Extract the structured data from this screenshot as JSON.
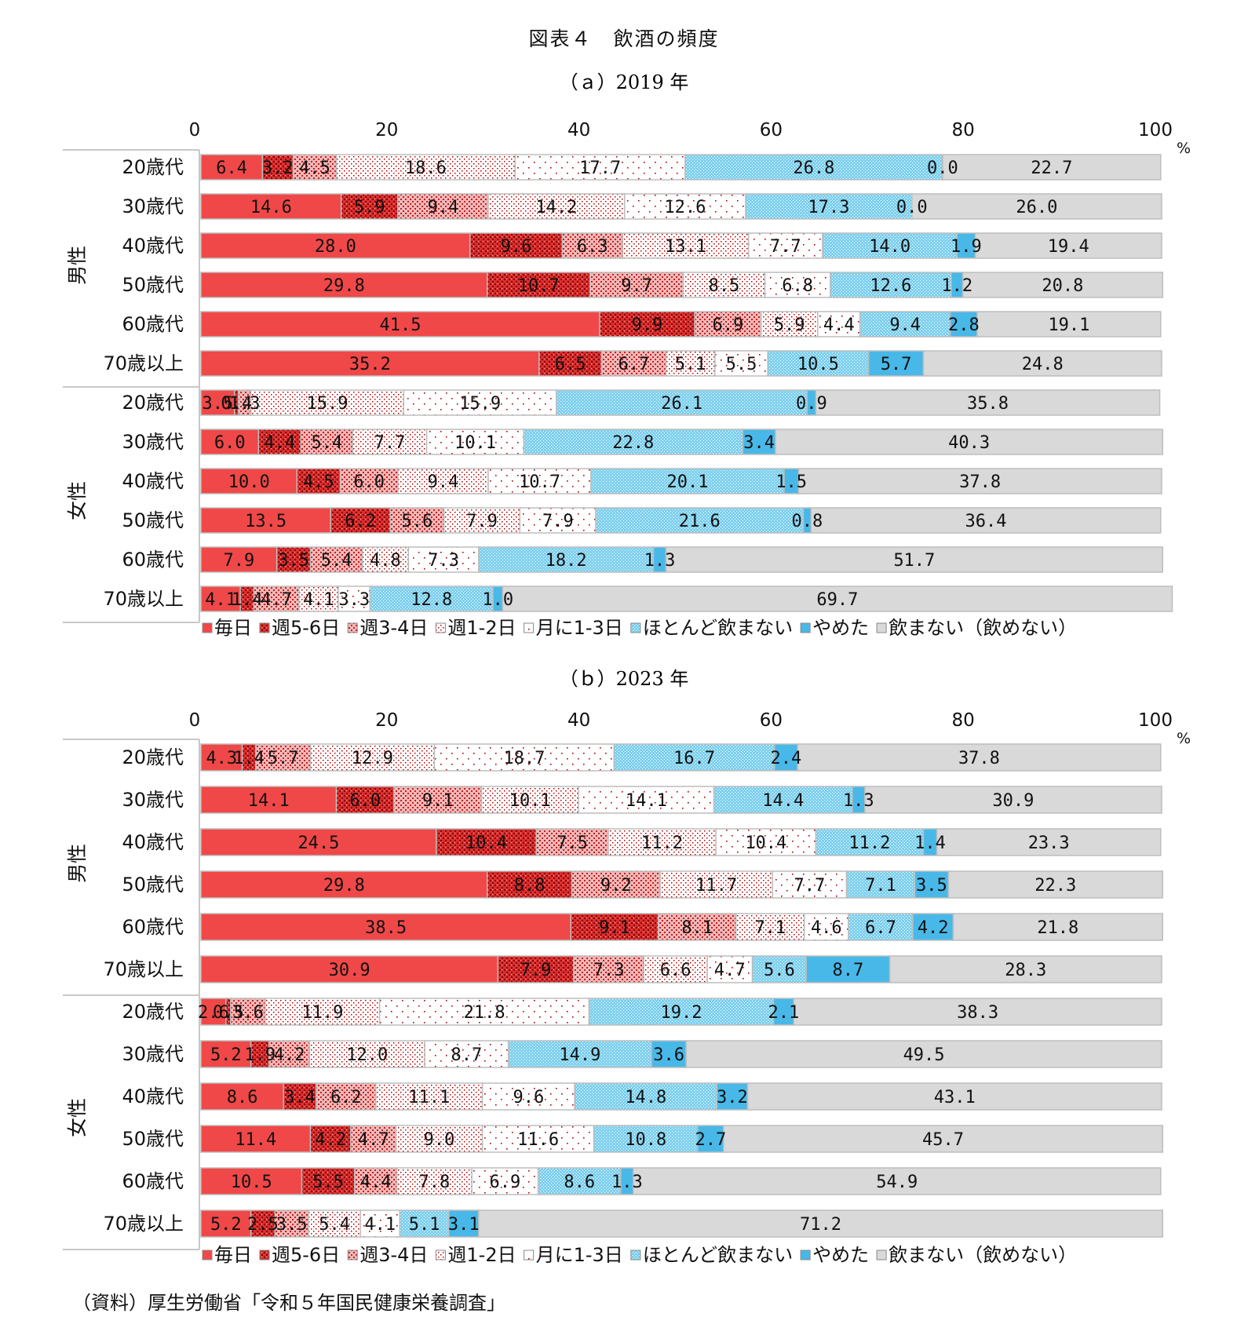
{
  "title": "図表４　飲酒の頻度",
  "source": "（資料）厚生労働省「令和５年国民健康栄養調査」",
  "legend": [
    {
      "name": "毎日",
      "color": "#f04848",
      "pattern": "solid"
    },
    {
      "name": "週5-6日",
      "color": "#e03c3c",
      "pattern": "dense-red"
    },
    {
      "name": "週3-4日",
      "color": "#e87070",
      "pattern": "medium-red"
    },
    {
      "name": "週1-2日",
      "color": "#f4a8a8",
      "pattern": "light-red"
    },
    {
      "name": "月に1-3日",
      "color": "#f8d0d0",
      "pattern": "sparse-red"
    },
    {
      "name": "ほとんど飲まない",
      "color": "#7ed0ee",
      "pattern": "dotted-blue"
    },
    {
      "name": "やめた",
      "color": "#48b8e8",
      "pattern": "solid"
    },
    {
      "name": "飲まない（飲めない）",
      "color": "#d9d9d9",
      "pattern": "solid"
    }
  ],
  "axis": {
    "ticks": [
      "0",
      "20",
      "40",
      "60",
      "80",
      "100"
    ],
    "unit": "%"
  },
  "groups": [
    {
      "name": "男性",
      "rows": [
        "20歳代",
        "30歳代",
        "40歳代",
        "50歳代",
        "60歳代",
        "70歳以上"
      ]
    },
    {
      "name": "女性",
      "rows": [
        "20歳代",
        "30歳代",
        "40歳代",
        "50歳代",
        "60歳代",
        "70歳以上"
      ]
    }
  ],
  "chart_data": [
    {
      "type": "bar",
      "orientation": "horizontal-stacked",
      "title": "（ａ）2019 年",
      "xlim": [
        0,
        100
      ],
      "categories": [
        "男性 20歳代",
        "男性 30歳代",
        "男性 40歳代",
        "男性 50歳代",
        "男性 60歳代",
        "男性 70歳以上",
        "女性 20歳代",
        "女性 30歳代",
        "女性 40歳代",
        "女性 50歳代",
        "女性 60歳代",
        "女性 70歳以上"
      ],
      "series": [
        {
          "name": "毎日",
          "values": [
            "6.4",
            "14.6",
            "28.0",
            "29.8",
            "41.5",
            "35.2",
            "3.5",
            "6.0",
            "10.0",
            "13.5",
            "7.9",
            "4.1"
          ]
        },
        {
          "name": "週5-6日",
          "values": [
            "3.2",
            "5.9",
            "9.6",
            "10.7",
            "9.9",
            "6.5",
            "0.4",
            "4.4",
            "4.5",
            "6.2",
            "3.5",
            "1.4"
          ]
        },
        {
          "name": "週3-4日",
          "values": [
            "4.5",
            "9.4",
            "6.3",
            "9.7",
            "6.9",
            "6.7",
            "1.3",
            "5.4",
            "6.0",
            "5.6",
            "5.4",
            "4.7"
          ]
        },
        {
          "name": "週1-2日",
          "values": [
            "18.6",
            "14.2",
            "13.1",
            "8.5",
            "5.9",
            "5.1",
            "15.9",
            "7.7",
            "9.4",
            "7.9",
            "4.8",
            "4.1"
          ]
        },
        {
          "name": "月に1-3日",
          "values": [
            "17.7",
            "12.6",
            "7.7",
            "6.8",
            "4.4",
            "5.5",
            "15.9",
            "10.1",
            "10.7",
            "7.9",
            "7.3",
            "3.3"
          ]
        },
        {
          "name": "ほとんど飲まない",
          "values": [
            "26.8",
            "17.3",
            "14.0",
            "12.6",
            "9.4",
            "10.5",
            "26.1",
            "22.8",
            "20.1",
            "21.6",
            "18.2",
            "12.8"
          ]
        },
        {
          "name": "やめた",
          "values": [
            "0.0",
            "0.0",
            "1.9",
            "1.2",
            "2.8",
            "5.7",
            "0.9",
            "3.4",
            "1.5",
            "0.8",
            "1.3",
            "1.0"
          ]
        },
        {
          "name": "飲まない（飲めない）",
          "values": [
            "22.7",
            "26.0",
            "19.4",
            "20.8",
            "19.1",
            "24.8",
            "35.8",
            "40.3",
            "37.8",
            "36.4",
            "51.7",
            "69.7"
          ]
        }
      ]
    },
    {
      "type": "bar",
      "orientation": "horizontal-stacked",
      "title": "（ｂ）2023 年",
      "xlim": [
        0,
        100
      ],
      "categories": [
        "男性 20歳代",
        "男性 30歳代",
        "男性 40歳代",
        "男性 50歳代",
        "男性 60歳代",
        "男性 70歳以上",
        "女性 20歳代",
        "女性 30歳代",
        "女性 40歳代",
        "女性 50歳代",
        "女性 60歳代",
        "女性 70歳以上"
      ],
      "series": [
        {
          "name": "毎日",
          "values": [
            "4.3",
            "14.1",
            "24.5",
            "29.8",
            "38.5",
            "30.9",
            "2.6",
            "5.2",
            "8.6",
            "11.4",
            "10.5",
            "5.2"
          ]
        },
        {
          "name": "週5-6日",
          "values": [
            "1.4",
            "6.0",
            "10.4",
            "8.8",
            "9.1",
            "7.9",
            "0.5",
            "1.9",
            "3.4",
            "4.2",
            "5.5",
            "2.5"
          ]
        },
        {
          "name": "週3-4日",
          "values": [
            "5.7",
            "9.1",
            "7.5",
            "9.2",
            "8.1",
            "7.3",
            "3.6",
            "4.2",
            "6.2",
            "4.7",
            "4.4",
            "3.5"
          ]
        },
        {
          "name": "週1-2日",
          "values": [
            "12.9",
            "10.1",
            "11.2",
            "11.7",
            "7.1",
            "6.6",
            "11.9",
            "12.0",
            "11.1",
            "9.0",
            "7.8",
            "5.4"
          ]
        },
        {
          "name": "月に1-3日",
          "values": [
            "18.7",
            "14.1",
            "10.4",
            "7.7",
            "4.6",
            "4.7",
            "21.8",
            "8.7",
            "9.6",
            "11.6",
            "6.9",
            "4.1"
          ]
        },
        {
          "name": "ほとんど飲まない",
          "values": [
            "16.7",
            "14.4",
            "11.2",
            "7.1",
            "6.7",
            "5.6",
            "19.2",
            "14.9",
            "14.8",
            "10.8",
            "8.6",
            "5.1"
          ]
        },
        {
          "name": "やめた",
          "values": [
            "2.4",
            "1.3",
            "1.4",
            "3.5",
            "4.2",
            "8.7",
            "2.1",
            "3.6",
            "3.2",
            "2.7",
            "1.3",
            "3.1"
          ]
        },
        {
          "name": "飲まない（飲めない）",
          "values": [
            "37.8",
            "30.9",
            "23.3",
            "22.3",
            "21.8",
            "28.3",
            "38.3",
            "49.5",
            "43.1",
            "45.7",
            "54.9",
            "71.2"
          ]
        }
      ]
    }
  ]
}
